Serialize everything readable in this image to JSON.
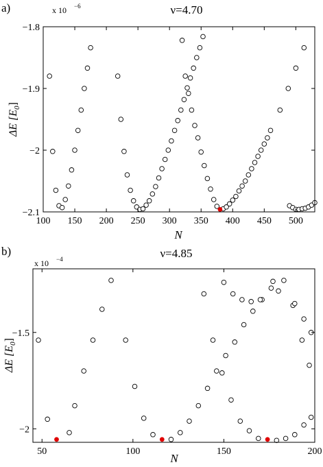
{
  "chart_data": [
    {
      "type": "scatter",
      "panel_label": "a)",
      "title": "ν=4.70",
      "xlabel": "N",
      "ylabel": "ΔE [E",
      "ylabel_sub": "0",
      "ylabel_close": "]",
      "exponent_label": "x 10",
      "exponent_power": "−6",
      "xlim": [
        100,
        530
      ],
      "ylim": [
        -2.1,
        -1.8
      ],
      "xticks": [
        100,
        150,
        200,
        250,
        300,
        350,
        400,
        450,
        500
      ],
      "yticks": [
        -2.1,
        -2.0,
        -1.9,
        -1.8
      ],
      "xtick_labels": [
        "100",
        "150",
        "200",
        "250",
        "300",
        "350",
        "400",
        "450",
        "500"
      ],
      "ytick_labels": [
        "−2.1",
        "−2",
        "−1.9",
        "−1.8"
      ],
      "series": [
        {
          "style": "open",
          "color": "#000000",
          "points": [
            [
              110,
              -1.88
            ],
            [
              115,
              -2.002
            ],
            [
              120,
              -2.065
            ],
            [
              125,
              -2.09
            ],
            [
              130,
              -2.093
            ],
            [
              135,
              -2.08
            ],
            [
              140,
              -2.058
            ],
            [
              145,
              -2.032
            ],
            [
              150,
              -2.0
            ],
            [
              155,
              -1.968
            ],
            [
              160,
              -1.935
            ],
            [
              165,
              -1.9
            ],
            [
              170,
              -1.867
            ],
            [
              175,
              -1.834
            ],
            [
              218,
              -1.88
            ],
            [
              223,
              -1.95
            ],
            [
              228,
              -2.002
            ],
            [
              233,
              -2.04
            ],
            [
              238,
              -2.065
            ],
            [
              243,
              -2.082
            ],
            [
              248,
              -2.092
            ],
            [
              253,
              -2.096
            ],
            [
              258,
              -2.095
            ],
            [
              263,
              -2.089
            ],
            [
              268,
              -2.082
            ],
            [
              273,
              -2.071
            ],
            [
              278,
              -2.059
            ],
            [
              283,
              -2.045
            ],
            [
              288,
              -2.03
            ],
            [
              293,
              -2.015
            ],
            [
              298,
              -2.0
            ],
            [
              303,
              -1.985
            ],
            [
              308,
              -1.968
            ],
            [
              313,
              -1.952
            ],
            [
              318,
              -1.935
            ],
            [
              323,
              -1.918
            ],
            [
              328,
              -1.899
            ],
            [
              333,
              -1.883
            ],
            [
              338,
              -1.867
            ],
            [
              343,
              -1.85
            ],
            [
              348,
              -1.834
            ],
            [
              353,
              -1.816
            ],
            [
              320,
              -1.822
            ],
            [
              325,
              -1.88
            ],
            [
              330,
              -1.908
            ],
            [
              335,
              -1.935
            ],
            [
              340,
              -1.96
            ],
            [
              345,
              -1.98
            ],
            [
              350,
              -2.003
            ],
            [
              355,
              -2.025
            ],
            [
              360,
              -2.046
            ],
            [
              365,
              -2.063
            ],
            [
              370,
              -2.08
            ],
            [
              375,
              -2.091
            ],
            [
              385,
              -2.095
            ],
            [
              390,
              -2.092
            ],
            [
              395,
              -2.087
            ],
            [
              400,
              -2.081
            ],
            [
              405,
              -2.075
            ],
            [
              410,
              -2.066
            ],
            [
              415,
              -2.058
            ],
            [
              420,
              -2.05
            ],
            [
              425,
              -2.04
            ],
            [
              430,
              -2.03
            ],
            [
              435,
              -2.02
            ],
            [
              440,
              -2.01
            ],
            [
              445,
              -2.0
            ],
            [
              450,
              -1.99
            ],
            [
              455,
              -1.98
            ],
            [
              460,
              -1.968
            ],
            [
              475,
              -1.935
            ],
            [
              488,
              -1.9
            ],
            [
              500,
              -1.867
            ],
            [
              513,
              -1.834
            ],
            [
              490,
              -2.09
            ],
            [
              495,
              -2.093
            ],
            [
              500,
              -2.096
            ],
            [
              505,
              -2.096
            ],
            [
              510,
              -2.095
            ],
            [
              515,
              -2.094
            ],
            [
              520,
              -2.092
            ],
            [
              525,
              -2.089
            ],
            [
              530,
              -2.085
            ]
          ]
        },
        {
          "style": "filled",
          "color": "#e00000",
          "points": [
            [
              380,
              -2.096
            ]
          ]
        }
      ]
    },
    {
      "type": "scatter",
      "panel_label": "b)",
      "title": "ν=4.85",
      "xlabel": "N",
      "ylabel": "ΔE [E",
      "ylabel_sub": "0",
      "ylabel_close": "]",
      "exponent_label": "x 10",
      "exponent_power": "−4",
      "xlim": [
        45,
        200
      ],
      "ylim": [
        -2.07,
        -1.17
      ],
      "xticks": [
        50,
        100,
        150,
        200
      ],
      "yticks": [
        -2.0,
        -1.5
      ],
      "xtick_labels": [
        "50",
        "100",
        "150",
        "200"
      ],
      "ytick_labels": [
        "−2",
        "−1.5"
      ],
      "series": [
        {
          "style": "open",
          "color": "#000000",
          "points": [
            [
              48,
              -1.54
            ],
            [
              53,
              -1.95
            ],
            [
              65,
              -2.02
            ],
            [
              68,
              -1.88
            ],
            [
              73,
              -1.7
            ],
            [
              78,
              -1.54
            ],
            [
              83,
              -1.38
            ],
            [
              88,
              -1.23
            ],
            [
              96,
              -1.54
            ],
            [
              101,
              -1.78
            ],
            [
              106,
              -1.945
            ],
            [
              111,
              -2.03
            ],
            [
              121,
              -2.055
            ],
            [
              126,
              -2.02
            ],
            [
              131,
              -1.96
            ],
            [
              136,
              -1.88
            ],
            [
              141,
              -1.79
            ],
            [
              146,
              -1.7
            ],
            [
              151,
              -1.62
            ],
            [
              156,
              -1.55
            ],
            [
              161,
              -1.46
            ],
            [
              166,
              -1.39
            ],
            [
              171,
              -1.33
            ],
            [
              176,
              -1.27
            ],
            [
              139,
              -1.3
            ],
            [
              144,
              -1.54
            ],
            [
              149,
              -1.71
            ],
            [
              154,
              -1.85
            ],
            [
              159,
              -1.96
            ],
            [
              164,
              -2.01
            ],
            [
              169,
              -2.05
            ],
            [
              179,
              -2.06
            ],
            [
              184,
              -2.05
            ],
            [
              189,
              -2.03
            ],
            [
              194,
              -1.98
            ],
            [
              198,
              -1.94
            ],
            [
              150,
              -1.24
            ],
            [
              155,
              -1.3
            ],
            [
              160,
              -1.33
            ],
            [
              165,
              -1.34
            ],
            [
              170,
              -1.33
            ],
            [
              177,
              -1.235
            ],
            [
              180,
              -1.285
            ],
            [
              183,
              -1.23
            ],
            [
              188,
              -1.36
            ],
            [
              189,
              -1.35
            ],
            [
              193,
              -1.54
            ],
            [
              194,
              -1.43
            ],
            [
              197,
              -1.67
            ],
            [
              198,
              -1.5
            ]
          ]
        },
        {
          "style": "filled",
          "color": "#e00000",
          "points": [
            [
              58,
              -2.055
            ],
            [
              116,
              -2.055
            ],
            [
              174,
              -2.055
            ]
          ]
        }
      ]
    }
  ]
}
